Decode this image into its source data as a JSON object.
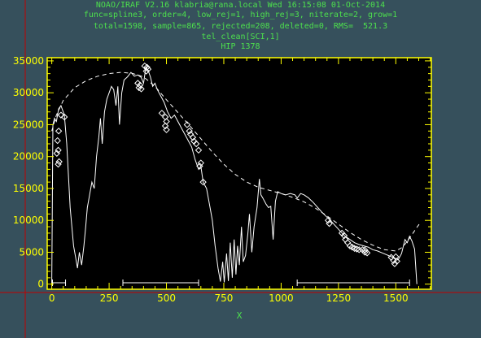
{
  "header": {
    "line1": "NOAO/IRAF V2.16 klabria@rana.local Wed 16:15:08 01-Oct-2014",
    "line2": "func=spline3, order=4, low_rej=1, high_rej=3, niterate=2, grow=1",
    "line3": "total=1598, sample=865, rejected=208, deleted=0, RMS=  521.3",
    "line4": "tel_clean[SCI,1]",
    "line5": "HIP 1378"
  },
  "colors": {
    "background": "#36505c",
    "plot_bg": "#000000",
    "frame": "#ffff00",
    "text": "#4de04d",
    "data": "#ffffff",
    "cursor": "#c00000"
  },
  "chart_data": {
    "type": "line",
    "title": "HIP 1378",
    "xlabel": "X",
    "ylabel": "",
    "xlim": [
      -20,
      1655
    ],
    "ylim": [
      -800,
      35500
    ],
    "x_ticks": [
      0,
      250,
      500,
      750,
      1000,
      1250,
      1500
    ],
    "y_ticks": [
      0,
      5000,
      10000,
      15000,
      20000,
      25000,
      30000,
      35000
    ],
    "x_tick_labels": [
      "0",
      "250",
      "500",
      "750",
      "1000",
      "1250",
      "1500"
    ],
    "y_tick_labels": [
      "0",
      "5000",
      "10000",
      "15000",
      "20000",
      "25000",
      "30000",
      "35000"
    ],
    "series": [
      {
        "style": "solid",
        "points": [
          [
            0,
            0
          ],
          [
            5,
            25000
          ],
          [
            12,
            26000
          ],
          [
            20,
            25500
          ],
          [
            30,
            27500
          ],
          [
            40,
            28000
          ],
          [
            55,
            26500
          ],
          [
            65,
            22000
          ],
          [
            80,
            12000
          ],
          [
            95,
            6000
          ],
          [
            105,
            4000
          ],
          [
            112,
            2500
          ],
          [
            120,
            5000
          ],
          [
            130,
            3000
          ],
          [
            140,
            6000
          ],
          [
            148,
            9000
          ],
          [
            155,
            12000
          ],
          [
            165,
            14000
          ],
          [
            175,
            16000
          ],
          [
            185,
            15000
          ],
          [
            195,
            20000
          ],
          [
            205,
            23000
          ],
          [
            212,
            26000
          ],
          [
            220,
            22000
          ],
          [
            230,
            27000
          ],
          [
            240,
            29000
          ],
          [
            250,
            30000
          ],
          [
            260,
            31000
          ],
          [
            270,
            30500
          ],
          [
            280,
            28000
          ],
          [
            288,
            31000
          ],
          [
            295,
            25000
          ],
          [
            305,
            30000
          ],
          [
            315,
            32000
          ],
          [
            330,
            32500
          ],
          [
            345,
            33200
          ],
          [
            360,
            32600
          ],
          [
            375,
            32800
          ],
          [
            390,
            32400
          ],
          [
            400,
            31500
          ],
          [
            410,
            34000
          ],
          [
            420,
            33500
          ],
          [
            430,
            32500
          ],
          [
            440,
            31000
          ],
          [
            450,
            31500
          ],
          [
            460,
            30500
          ],
          [
            475,
            29500
          ],
          [
            490,
            28500
          ],
          [
            505,
            27000
          ],
          [
            520,
            26000
          ],
          [
            535,
            26500
          ],
          [
            550,
            25500
          ],
          [
            565,
            24500
          ],
          [
            580,
            23500
          ],
          [
            595,
            22500
          ],
          [
            610,
            21500
          ],
          [
            625,
            19500
          ],
          [
            640,
            18000
          ],
          [
            650,
            18500
          ],
          [
            660,
            16000
          ],
          [
            675,
            15000
          ],
          [
            690,
            12000
          ],
          [
            700,
            10000
          ],
          [
            712,
            6000
          ],
          [
            725,
            2500
          ],
          [
            735,
            400
          ],
          [
            745,
            3500
          ],
          [
            752,
            300
          ],
          [
            762,
            4800
          ],
          [
            770,
            500
          ],
          [
            778,
            6500
          ],
          [
            787,
            1000
          ],
          [
            795,
            7000
          ],
          [
            803,
            1500
          ],
          [
            810,
            6000
          ],
          [
            818,
            3000
          ],
          [
            827,
            9000
          ],
          [
            835,
            3500
          ],
          [
            845,
            4500
          ],
          [
            855,
            8000
          ],
          [
            862,
            11000
          ],
          [
            872,
            5000
          ],
          [
            882,
            9000
          ],
          [
            895,
            12000
          ],
          [
            905,
            16500
          ],
          [
            912,
            14000
          ],
          [
            920,
            13500
          ],
          [
            935,
            12500
          ],
          [
            945,
            12000
          ],
          [
            955,
            12200
          ],
          [
            965,
            7000
          ],
          [
            975,
            13000
          ],
          [
            985,
            14500
          ],
          [
            1000,
            14200
          ],
          [
            1020,
            14000
          ],
          [
            1040,
            14200
          ],
          [
            1060,
            14000
          ],
          [
            1070,
            13500
          ],
          [
            1085,
            14200
          ],
          [
            1100,
            14000
          ],
          [
            1120,
            13500
          ],
          [
            1140,
            12800
          ],
          [
            1160,
            12000
          ],
          [
            1180,
            11200
          ],
          [
            1200,
            10500
          ],
          [
            1220,
            9800
          ],
          [
            1240,
            9000
          ],
          [
            1260,
            8200
          ],
          [
            1280,
            7500
          ],
          [
            1300,
            7000
          ],
          [
            1320,
            6500
          ],
          [
            1340,
            6200
          ],
          [
            1360,
            6000
          ],
          [
            1380,
            5800
          ],
          [
            1400,
            5400
          ],
          [
            1420,
            5200
          ],
          [
            1440,
            4900
          ],
          [
            1460,
            4600
          ],
          [
            1480,
            4300
          ],
          [
            1500,
            4000
          ],
          [
            1510,
            3800
          ],
          [
            1525,
            4800
          ],
          [
            1540,
            7000
          ],
          [
            1550,
            6500
          ],
          [
            1560,
            7500
          ],
          [
            1570,
            6800
          ],
          [
            1582,
            5500
          ],
          [
            1592,
            0
          ]
        ]
      },
      {
        "style": "dashed",
        "points": [
          [
            0,
            24000
          ],
          [
            20,
            26500
          ],
          [
            50,
            28800
          ],
          [
            100,
            30800
          ],
          [
            150,
            31900
          ],
          [
            200,
            32600
          ],
          [
            250,
            33000
          ],
          [
            300,
            33200
          ],
          [
            350,
            33050
          ],
          [
            400,
            32500
          ],
          [
            450,
            31000
          ],
          [
            500,
            28900
          ],
          [
            550,
            26900
          ],
          [
            600,
            24900
          ],
          [
            650,
            22800
          ],
          [
            700,
            20700
          ],
          [
            750,
            18800
          ],
          [
            800,
            17200
          ],
          [
            850,
            16000
          ],
          [
            900,
            15200
          ],
          [
            950,
            14700
          ],
          [
            1000,
            14200
          ],
          [
            1050,
            13600
          ],
          [
            1100,
            12900
          ],
          [
            1150,
            11900
          ],
          [
            1200,
            10700
          ],
          [
            1250,
            9400
          ],
          [
            1300,
            8100
          ],
          [
            1350,
            7000
          ],
          [
            1400,
            6100
          ],
          [
            1450,
            5400
          ],
          [
            1500,
            5200
          ],
          [
            1530,
            5800
          ],
          [
            1560,
            7200
          ],
          [
            1590,
            8800
          ],
          [
            1610,
            9800
          ]
        ]
      },
      {
        "style": "rejected",
        "points": [
          [
            40,
            26500
          ],
          [
            55,
            26200
          ],
          [
            30,
            24000
          ],
          [
            25,
            22500
          ],
          [
            28,
            21000
          ],
          [
            22,
            20500
          ],
          [
            32,
            19200
          ],
          [
            28,
            18800
          ],
          [
            405,
            34200
          ],
          [
            415,
            34000
          ],
          [
            412,
            33400
          ],
          [
            420,
            33700
          ],
          [
            375,
            31500
          ],
          [
            385,
            31200
          ],
          [
            380,
            30800
          ],
          [
            390,
            30600
          ],
          [
            480,
            26800
          ],
          [
            495,
            26200
          ],
          [
            500,
            25500
          ],
          [
            495,
            24800
          ],
          [
            500,
            24200
          ],
          [
            590,
            25000
          ],
          [
            600,
            24000
          ],
          [
            605,
            23500
          ],
          [
            615,
            23000
          ],
          [
            620,
            22400
          ],
          [
            630,
            22000
          ],
          [
            640,
            21000
          ],
          [
            650,
            19000
          ],
          [
            645,
            18500
          ],
          [
            660,
            16000
          ],
          [
            1205,
            10000
          ],
          [
            1210,
            9500
          ],
          [
            1265,
            8000
          ],
          [
            1275,
            7600
          ],
          [
            1280,
            7000
          ],
          [
            1290,
            6500
          ],
          [
            1300,
            6000
          ],
          [
            1310,
            5800
          ],
          [
            1320,
            5600
          ],
          [
            1330,
            5500
          ],
          [
            1340,
            5400
          ],
          [
            1355,
            5400
          ],
          [
            1365,
            5350
          ],
          [
            1365,
            5000
          ],
          [
            1375,
            4900
          ],
          [
            1480,
            4200
          ],
          [
            1490,
            3700
          ],
          [
            1500,
            4300
          ],
          [
            1495,
            3200
          ],
          [
            1505,
            3600
          ]
        ]
      }
    ],
    "sample_ranges": [
      [
        3,
        60
      ],
      [
        310,
        640
      ],
      [
        1070,
        1560
      ]
    ]
  }
}
